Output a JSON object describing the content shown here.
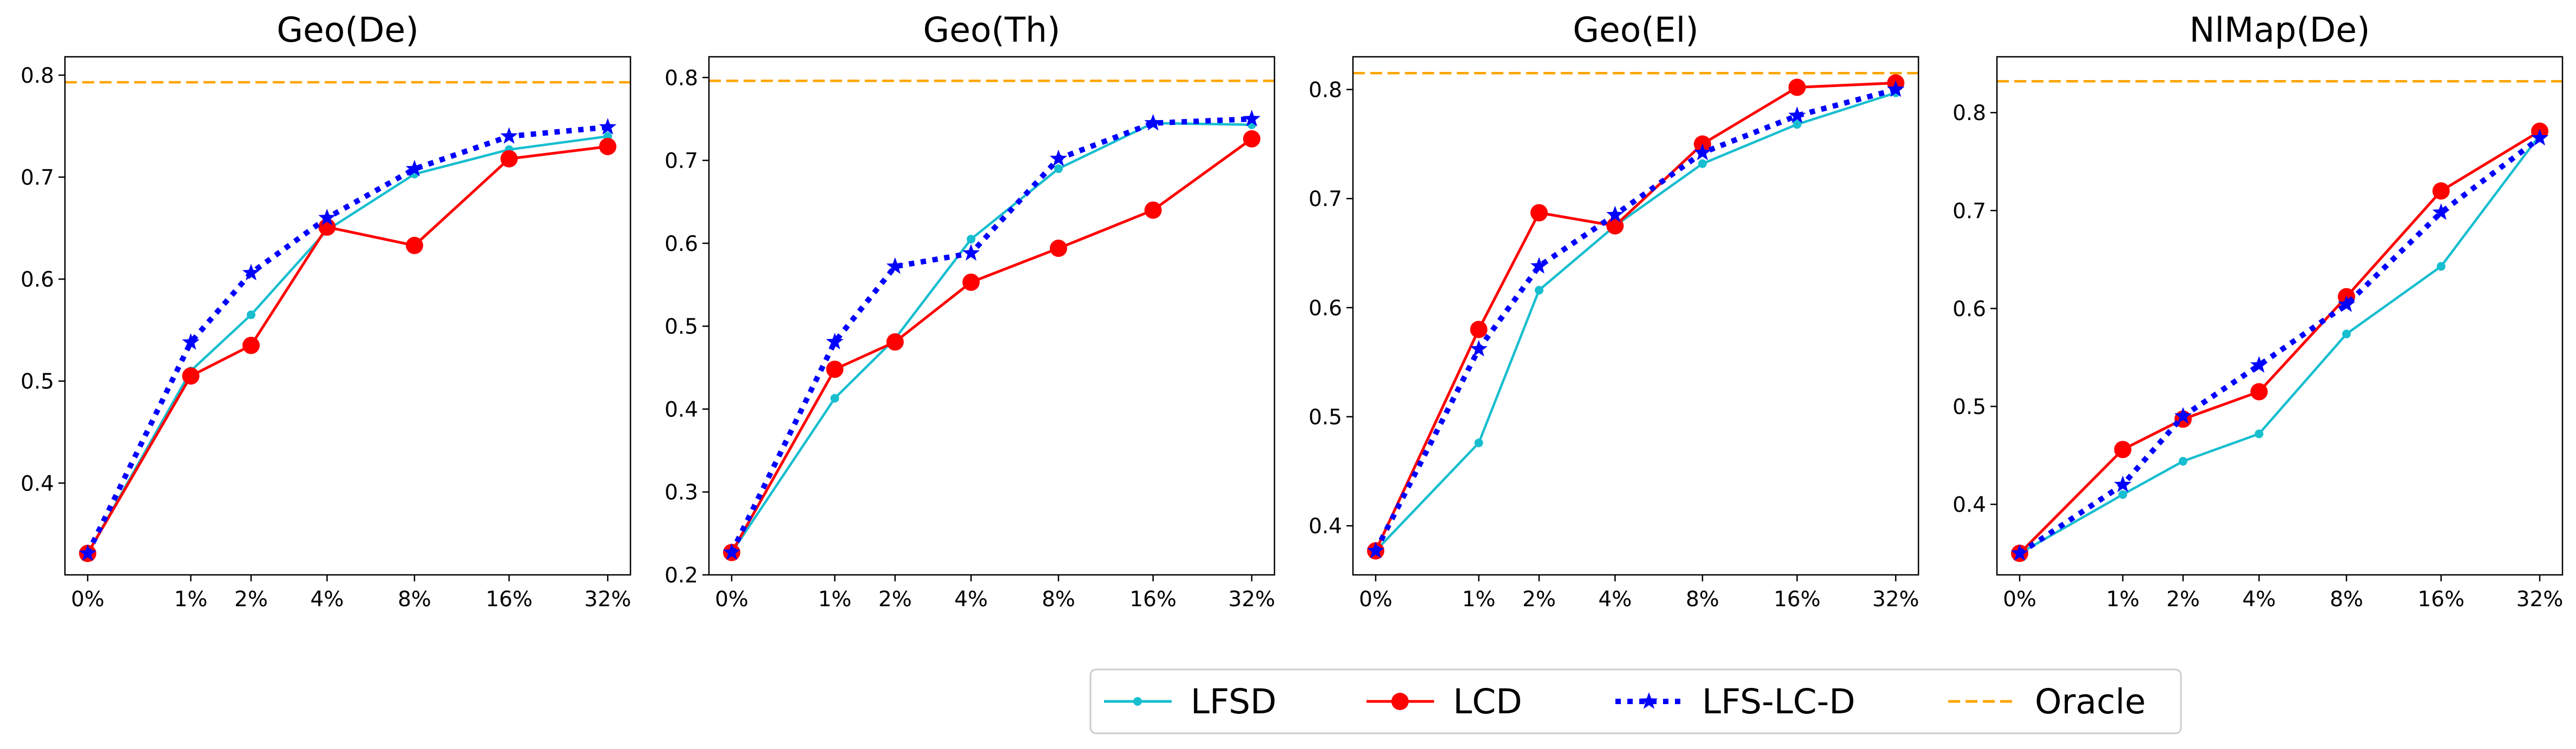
{
  "chart_data": [
    {
      "type": "line",
      "title": "Geo(De)",
      "categories": [
        "0%",
        "1%",
        "2%",
        "4%",
        "8%",
        "16%",
        "32%"
      ],
      "x": [
        0,
        1,
        2,
        4,
        8,
        16,
        32
      ],
      "xscale": "log2-offset",
      "yticks": [
        "0.4",
        "0.5",
        "0.6",
        "0.7",
        "0.8"
      ],
      "ytick_values": [
        0.4,
        0.5,
        0.6,
        0.7,
        0.8
      ],
      "ylim": [
        0.31,
        0.818
      ],
      "oracle": 0.793,
      "series": [
        {
          "name": "LFSD",
          "values": [
            0.331,
            0.51,
            0.565,
            0.648,
            0.703,
            0.727,
            0.74
          ]
        },
        {
          "name": "LCD",
          "values": [
            0.331,
            0.505,
            0.535,
            0.651,
            0.633,
            0.718,
            0.73
          ]
        },
        {
          "name": "LFS-LC-D",
          "values": [
            0.331,
            0.538,
            0.606,
            0.66,
            0.708,
            0.74,
            0.749
          ]
        }
      ]
    },
    {
      "type": "line",
      "title": "Geo(Th)",
      "categories": [
        "0%",
        "1%",
        "2%",
        "4%",
        "8%",
        "16%",
        "32%"
      ],
      "x": [
        0,
        1,
        2,
        4,
        8,
        16,
        32
      ],
      "xscale": "log2-offset",
      "yticks": [
        "0.2",
        "0.3",
        "0.4",
        "0.5",
        "0.6",
        "0.7",
        "0.8"
      ],
      "ytick_values": [
        0.2,
        0.3,
        0.4,
        0.5,
        0.6,
        0.7,
        0.8
      ],
      "ylim": [
        0.2,
        0.825
      ],
      "oracle": 0.796,
      "series": [
        {
          "name": "LFSD",
          "values": [
            0.227,
            0.413,
            0.485,
            0.605,
            0.69,
            0.745,
            0.743
          ]
        },
        {
          "name": "LCD",
          "values": [
            0.227,
            0.448,
            0.481,
            0.553,
            0.594,
            0.64,
            0.726
          ]
        },
        {
          "name": "LFS-LC-D",
          "values": [
            0.227,
            0.481,
            0.572,
            0.588,
            0.702,
            0.745,
            0.75
          ]
        }
      ]
    },
    {
      "type": "line",
      "title": "Geo(El)",
      "categories": [
        "0%",
        "1%",
        "2%",
        "4%",
        "8%",
        "16%",
        "32%"
      ],
      "x": [
        0,
        1,
        2,
        4,
        8,
        16,
        32
      ],
      "xscale": "log2-offset",
      "yticks": [
        "0.4",
        "0.5",
        "0.6",
        "0.7",
        "0.8"
      ],
      "ytick_values": [
        0.4,
        0.5,
        0.6,
        0.7,
        0.8
      ],
      "ylim": [
        0.355,
        0.83
      ],
      "oracle": 0.815,
      "series": [
        {
          "name": "LFSD",
          "values": [
            0.377,
            0.476,
            0.616,
            0.675,
            0.732,
            0.768,
            0.797
          ]
        },
        {
          "name": "LCD",
          "values": [
            0.377,
            0.58,
            0.687,
            0.675,
            0.75,
            0.802,
            0.806
          ]
        },
        {
          "name": "LFS-LC-D",
          "values": [
            0.377,
            0.562,
            0.638,
            0.685,
            0.742,
            0.776,
            0.8
          ]
        }
      ]
    },
    {
      "type": "line",
      "title": "NlMap(De)",
      "categories": [
        "0%",
        "1%",
        "2%",
        "4%",
        "8%",
        "16%",
        "32%"
      ],
      "x": [
        0,
        1,
        2,
        4,
        8,
        16,
        32
      ],
      "xscale": "log2-offset",
      "yticks": [
        "0.4",
        "0.5",
        "0.6",
        "0.7",
        "0.8"
      ],
      "ytick_values": [
        0.4,
        0.5,
        0.6,
        0.7,
        0.8
      ],
      "ylim": [
        0.328,
        0.857
      ],
      "oracle": 0.832,
      "series": [
        {
          "name": "LFSD",
          "values": [
            0.35,
            0.41,
            0.444,
            0.472,
            0.574,
            0.643,
            0.777
          ]
        },
        {
          "name": "LCD",
          "values": [
            0.35,
            0.456,
            0.487,
            0.515,
            0.612,
            0.72,
            0.781
          ]
        },
        {
          "name": "LFS-LC-D",
          "values": [
            0.35,
            0.42,
            0.49,
            0.542,
            0.604,
            0.698,
            0.774
          ]
        }
      ]
    }
  ],
  "legend": {
    "placement": "bottom-center",
    "items": [
      {
        "label": "LFSD",
        "color": "#17becf",
        "style": "solid-dot"
      },
      {
        "label": "LCD",
        "color": "#ff0000",
        "style": "solid-circle"
      },
      {
        "label": "LFS-LC-D",
        "color": "#0000ff",
        "style": "dotted-star"
      },
      {
        "label": "Oracle",
        "color": "#ffa500",
        "style": "dashed"
      }
    ]
  },
  "colors": {
    "LFSD": "#17becf",
    "LCD": "#ff0000",
    "LFS-LC-D": "#0000ff",
    "Oracle": "#ffa500"
  }
}
